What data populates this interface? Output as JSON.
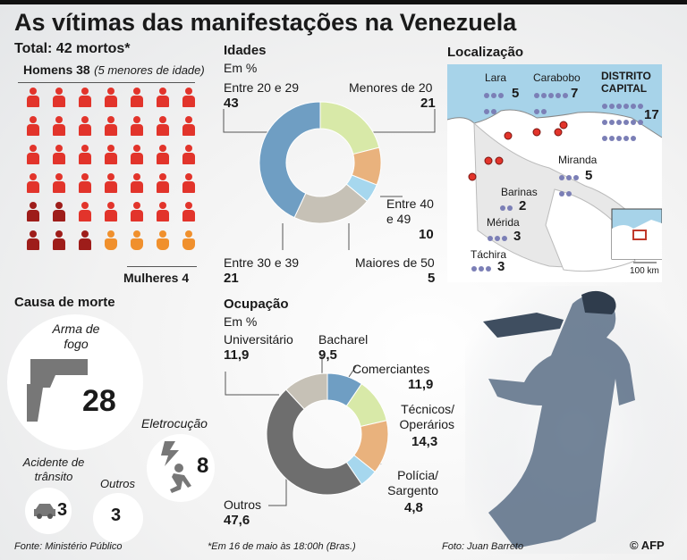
{
  "title": "As vítimas das manifestações na Venezuela",
  "total": {
    "label": "Total: 42 mortos*"
  },
  "men": {
    "label": "Homens 38",
    "note": "(5 menores de idade)",
    "count": 38,
    "minors": 5
  },
  "women": {
    "label": "Mulheres 4",
    "count": 4
  },
  "colors": {
    "men_adult": "#e2342b",
    "men_minor": "#9e1d1a",
    "women": "#f0902d",
    "map_dot": "#7b7fb6",
    "map_sea": "#a7d3e9"
  },
  "ages": {
    "title": "Idades",
    "unit": "Em %",
    "items": [
      {
        "label": "Menores de 20",
        "value": "21",
        "color": "#d8e9a8"
      },
      {
        "label": "Entre 40 e 49",
        "value": "10",
        "color": "#e9b27d"
      },
      {
        "label": "Maiores de 50",
        "value": "5",
        "color": "#a6d7ee"
      },
      {
        "label": "Entre 30 e 39",
        "value": "21",
        "color": "#c6c1b6"
      },
      {
        "label": "Entre 20 e 29",
        "value": "43",
        "color": "#6f9ec3"
      }
    ]
  },
  "location": {
    "title": "Localização",
    "regions": [
      {
        "name": "Lara",
        "value": "5",
        "dots": 5
      },
      {
        "name": "Carabobo",
        "value": "7",
        "dots": 7
      },
      {
        "name": "DISTRITO CAPITAL",
        "value": "17",
        "dots": 17
      },
      {
        "name": "Miranda",
        "value": "5",
        "dots": 5
      },
      {
        "name": "Barinas",
        "value": "2",
        "dots": 2
      },
      {
        "name": "Mérida",
        "value": "3",
        "dots": 3
      },
      {
        "name": "Táchira",
        "value": "3",
        "dots": 3
      }
    ],
    "scale": "100 km"
  },
  "causes": {
    "title": "Causa de morte",
    "items": [
      {
        "label": "Arma de fogo",
        "value": "28",
        "icon": "pistol-icon"
      },
      {
        "label": "Eletrocução",
        "value": "8",
        "icon": "electrocution-icon"
      },
      {
        "label": "Acidente de trânsito",
        "value": "3",
        "icon": "car-icon"
      },
      {
        "label": "Outros",
        "value": "3",
        "icon": ""
      }
    ]
  },
  "occupation": {
    "title": "Ocupação",
    "unit": "Em %",
    "items": [
      {
        "label": "Bacharel",
        "value": "9,5",
        "color": "#6f9ec3"
      },
      {
        "label": "Comerciantes",
        "value": "11,9",
        "color": "#d8e9a8"
      },
      {
        "label": "Técnicos/ Operários",
        "value": "14,3",
        "color": "#e9b27d"
      },
      {
        "label": "Polícia/ Sargento",
        "value": "4,8",
        "color": "#a6d7ee"
      },
      {
        "label": "Outros",
        "value": "47,6",
        "color": "#6e6e6e"
      },
      {
        "label": "Universitário",
        "value": "11,9",
        "color": "#c6c1b6"
      }
    ]
  },
  "footer": {
    "source": "Fonte: Ministério Público",
    "note": "*Em 16 de maio às 18:00h (Bras.)",
    "photo": "Foto: Juan Barreto",
    "credit": "© AFP"
  }
}
